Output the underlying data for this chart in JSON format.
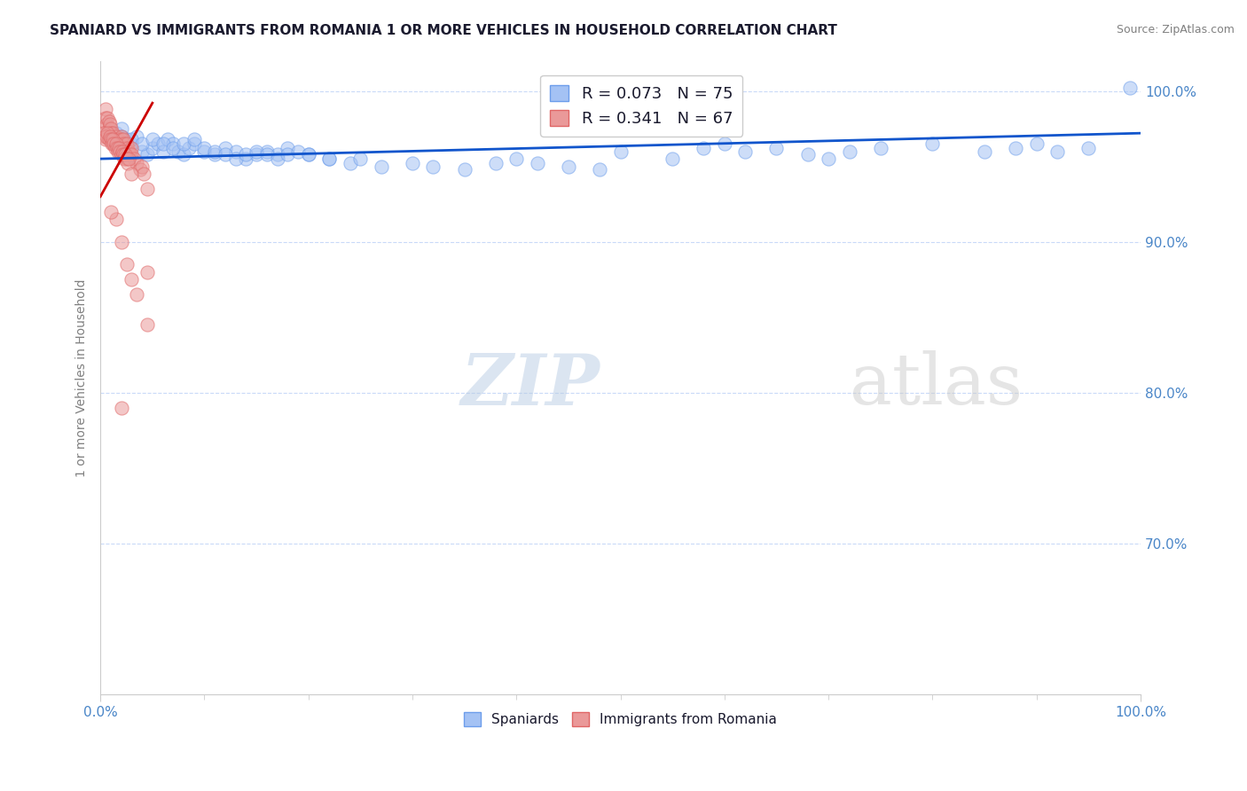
{
  "title": "SPANIARD VS IMMIGRANTS FROM ROMANIA 1 OR MORE VEHICLES IN HOUSEHOLD CORRELATION CHART",
  "source": "Source: ZipAtlas.com",
  "ylabel": "1 or more Vehicles in Household",
  "blue_color": "#a4c2f4",
  "pink_color": "#ea9999",
  "blue_edge_color": "#6d9eeb",
  "pink_edge_color": "#e06666",
  "blue_line_color": "#1155cc",
  "pink_line_color": "#cc0000",
  "legend_blue_label": "R = 0.073   N = 75",
  "legend_pink_label": "R = 0.341   N = 67",
  "legend_blue_r": "R = 0.073",
  "legend_blue_n": "N = 75",
  "legend_pink_r": "R = 0.341",
  "legend_pink_n": "N = 67",
  "blue_scatter_x": [
    1.5,
    2.0,
    2.5,
    3.0,
    3.5,
    4.0,
    4.5,
    5.0,
    5.5,
    6.0,
    6.5,
    7.0,
    7.5,
    8.0,
    8.5,
    9.0,
    10.0,
    11.0,
    12.0,
    13.0,
    14.0,
    15.0,
    16.0,
    17.0,
    18.0,
    20.0,
    22.0,
    24.0,
    25.0,
    27.0,
    30.0,
    32.0,
    35.0,
    38.0,
    40.0,
    42.0,
    45.0,
    48.0,
    50.0,
    55.0,
    58.0,
    60.0,
    62.0,
    65.0,
    68.0,
    70.0,
    72.0,
    75.0,
    80.0,
    85.0,
    88.0,
    90.0,
    92.0,
    95.0,
    99.0,
    2.0,
    3.0,
    4.0,
    5.0,
    6.0,
    7.0,
    8.0,
    9.0,
    10.0,
    11.0,
    12.0,
    13.0,
    14.0,
    15.0,
    16.0,
    17.0,
    18.0,
    19.0,
    20.0,
    22.0
  ],
  "blue_scatter_y": [
    97.2,
    97.5,
    96.8,
    96.5,
    97.0,
    96.0,
    95.8,
    96.2,
    96.5,
    96.0,
    96.8,
    96.5,
    96.0,
    95.8,
    96.2,
    96.5,
    96.0,
    95.8,
    96.2,
    96.0,
    95.5,
    95.8,
    96.0,
    95.8,
    96.2,
    95.8,
    95.5,
    95.2,
    95.5,
    95.0,
    95.2,
    95.0,
    94.8,
    95.2,
    95.5,
    95.2,
    95.0,
    94.8,
    96.0,
    95.5,
    96.2,
    96.5,
    96.0,
    96.2,
    95.8,
    95.5,
    96.0,
    96.2,
    96.5,
    96.0,
    96.2,
    96.5,
    96.0,
    96.2,
    100.2,
    97.0,
    96.8,
    96.5,
    96.8,
    96.5,
    96.2,
    96.5,
    96.8,
    96.2,
    96.0,
    95.8,
    95.5,
    95.8,
    96.0,
    95.8,
    95.5,
    95.8,
    96.0,
    95.8,
    95.5
  ],
  "pink_scatter_x": [
    0.3,
    0.5,
    0.5,
    0.6,
    0.7,
    0.8,
    0.8,
    0.9,
    1.0,
    1.0,
    1.1,
    1.2,
    1.2,
    1.3,
    1.4,
    1.5,
    1.5,
    1.6,
    1.7,
    1.8,
    1.8,
    1.9,
    2.0,
    2.0,
    2.1,
    2.2,
    2.3,
    2.4,
    2.5,
    2.6,
    2.7,
    2.8,
    3.0,
    3.0,
    3.2,
    3.5,
    3.8,
    4.0,
    4.2,
    4.5,
    0.3,
    0.4,
    0.5,
    0.6,
    0.7,
    0.8,
    0.9,
    1.0,
    1.1,
    1.2,
    1.3,
    1.4,
    1.5,
    1.6,
    1.7,
    1.8,
    1.9,
    2.0,
    2.1,
    2.2,
    2.3,
    2.4,
    2.5,
    2.6,
    2.7,
    3.0,
    4.5
  ],
  "pink_scatter_y": [
    97.5,
    98.8,
    98.2,
    97.8,
    98.2,
    97.5,
    98.0,
    97.8,
    97.5,
    97.2,
    96.8,
    97.2,
    96.5,
    96.8,
    96.5,
    97.0,
    96.5,
    96.8,
    96.5,
    96.8,
    96.5,
    96.2,
    97.0,
    96.8,
    96.5,
    96.8,
    96.5,
    96.2,
    96.5,
    96.2,
    96.0,
    95.8,
    96.2,
    95.8,
    95.5,
    95.2,
    94.8,
    95.0,
    94.5,
    93.5,
    97.2,
    97.0,
    96.8,
    97.0,
    97.2,
    96.8,
    97.0,
    96.8,
    96.5,
    96.8,
    96.5,
    96.2,
    96.5,
    96.2,
    96.0,
    96.2,
    96.0,
    95.8,
    96.0,
    95.8,
    95.5,
    95.8,
    95.5,
    95.2,
    95.5,
    94.5,
    88.0
  ],
  "pink_outliers_x": [
    1.5,
    2.0,
    2.5,
    3.0,
    3.5,
    4.5,
    1.0,
    2.0
  ],
  "pink_outliers_y": [
    91.5,
    90.0,
    88.5,
    87.5,
    86.5,
    84.5,
    92.0,
    79.0
  ],
  "xlim": [
    0,
    100
  ],
  "ylim_bottom": 60,
  "ylim_top": 102,
  "yticks": [
    100,
    90,
    80,
    70
  ],
  "ytick_labels": [
    "100.0%",
    "90.0%",
    "80.0%",
    "70.0%"
  ],
  "xtick_labels": [
    "0.0%",
    "100.0%"
  ],
  "grid_color": "#c9daf8",
  "grid_style": "--",
  "scatter_size": 120,
  "scatter_alpha": 0.55,
  "title_fontsize": 11,
  "source_fontsize": 9,
  "axis_label_color": "#4a86c8",
  "spine_color": "#cccccc"
}
